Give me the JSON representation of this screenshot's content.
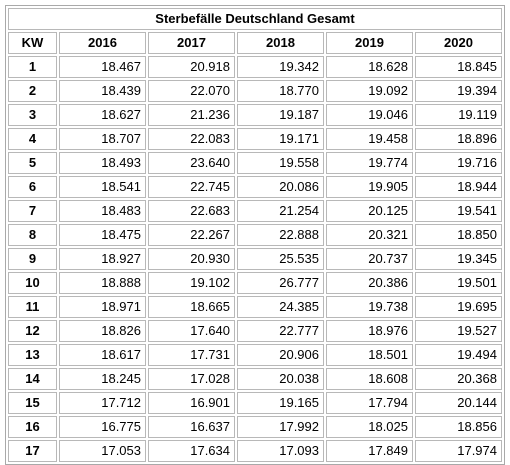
{
  "chart_data": {
    "type": "table",
    "title": "Sterbefälle Deutschland Gesamt",
    "columns": [
      "KW",
      "2016",
      "2017",
      "2018",
      "2019",
      "2020"
    ],
    "rows": [
      [
        "1",
        "18.467",
        "20.918",
        "19.342",
        "18.628",
        "18.845"
      ],
      [
        "2",
        "18.439",
        "22.070",
        "18.770",
        "19.092",
        "19.394"
      ],
      [
        "3",
        "18.627",
        "21.236",
        "19.187",
        "19.046",
        "19.119"
      ],
      [
        "4",
        "18.707",
        "22.083",
        "19.171",
        "19.458",
        "18.896"
      ],
      [
        "5",
        "18.493",
        "23.640",
        "19.558",
        "19.774",
        "19.716"
      ],
      [
        "6",
        "18.541",
        "22.745",
        "20.086",
        "19.905",
        "18.944"
      ],
      [
        "7",
        "18.483",
        "22.683",
        "21.254",
        "20.125",
        "19.541"
      ],
      [
        "8",
        "18.475",
        "22.267",
        "22.888",
        "20.321",
        "18.850"
      ],
      [
        "9",
        "18.927",
        "20.930",
        "25.535",
        "20.737",
        "19.345"
      ],
      [
        "10",
        "18.888",
        "19.102",
        "26.777",
        "20.386",
        "19.501"
      ],
      [
        "11",
        "18.971",
        "18.665",
        "24.385",
        "19.738",
        "19.695"
      ],
      [
        "12",
        "18.826",
        "17.640",
        "22.777",
        "18.976",
        "19.527"
      ],
      [
        "13",
        "18.617",
        "17.731",
        "20.906",
        "18.501",
        "19.494"
      ],
      [
        "14",
        "18.245",
        "17.028",
        "20.038",
        "18.608",
        "20.368"
      ],
      [
        "15",
        "17.712",
        "16.901",
        "19.165",
        "17.794",
        "20.144"
      ],
      [
        "16",
        "16.775",
        "16.637",
        "17.992",
        "18.025",
        "18.856"
      ],
      [
        "17",
        "17.053",
        "17.634",
        "17.093",
        "17.849",
        "17.974"
      ]
    ]
  }
}
